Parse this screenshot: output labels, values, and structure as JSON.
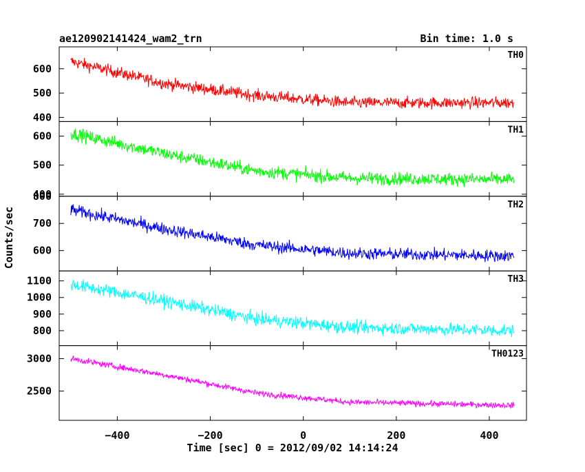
{
  "header": {
    "left_title": "ae120902141424_wam2_trn",
    "right_title": "Bin time: 1.0 s"
  },
  "chart_data": {
    "type": "line",
    "title": "ae120902141424_wam2_trn",
    "subtitle": "Bin time: 1.0 s",
    "xlabel": "Time [sec] 0 = 2012/09/02 14:14:24",
    "ylabel": "Counts/sec",
    "xlim": [
      -525,
      480
    ],
    "x_ticks": [
      -400,
      -200,
      0,
      200,
      400
    ],
    "x_tick_labels": [
      "−400",
      "−200",
      "0",
      "200",
      "400"
    ],
    "x_range": [
      -500,
      453
    ],
    "x_step": 1.0,
    "panels": [
      {
        "label": "TH0",
        "color": "#ff0000",
        "ylim": [
          383,
          690
        ],
        "y_ticks": [
          400,
          500,
          600
        ],
        "y_tick_labels": [
          "400",
          "500",
          "600"
        ],
        "trend": [
          [
            -500,
            630
          ],
          [
            -300,
            540
          ],
          [
            -100,
            490
          ],
          [
            100,
            460
          ],
          [
            453,
            460
          ]
        ],
        "noise": 24
      },
      {
        "label": "TH1",
        "color": "#00ff00",
        "ylim": [
          393,
          650
        ],
        "y_ticks": [
          400,
          500,
          600
        ],
        "y_tick_labels": [
          "400",
          "500",
          "600"
        ],
        "trend": [
          [
            -500,
            610
          ],
          [
            -300,
            540
          ],
          [
            -100,
            480
          ],
          [
            100,
            455
          ],
          [
            453,
            450
          ]
        ],
        "noise": 22
      },
      {
        "label": "TH2",
        "color": "#0000ff",
        "ylim": [
          525,
          800
        ],
        "y_ticks": [
          600,
          700,
          800
        ],
        "y_tick_labels": [
          "600",
          "700",
          "800"
        ],
        "trend": [
          [
            -500,
            750
          ],
          [
            -300,
            680
          ],
          [
            -100,
            620
          ],
          [
            100,
            590
          ],
          [
            453,
            580
          ]
        ],
        "noise": 22
      },
      {
        "label": "TH3",
        "color": "#00ffff",
        "ylim": [
          710,
          1160
        ],
        "y_ticks": [
          800,
          900,
          1000,
          1100
        ],
        "y_tick_labels": [
          "800",
          "900",
          "1000",
          "1100"
        ],
        "trend": [
          [
            -500,
            1080
          ],
          [
            -300,
            980
          ],
          [
            -100,
            870
          ],
          [
            100,
            820
          ],
          [
            453,
            800
          ]
        ],
        "noise": 38
      },
      {
        "label": "TH0123",
        "color": "#ff00ff",
        "ylim": [
          2050,
          3200
        ],
        "y_ticks": [
          2500,
          3000
        ],
        "y_tick_labels": [
          "2500",
          "3000"
        ],
        "trend": [
          [
            -500,
            3000
          ],
          [
            -300,
            2750
          ],
          [
            -100,
            2470
          ],
          [
            100,
            2330
          ],
          [
            453,
            2280
          ]
        ],
        "noise": 45
      }
    ]
  }
}
